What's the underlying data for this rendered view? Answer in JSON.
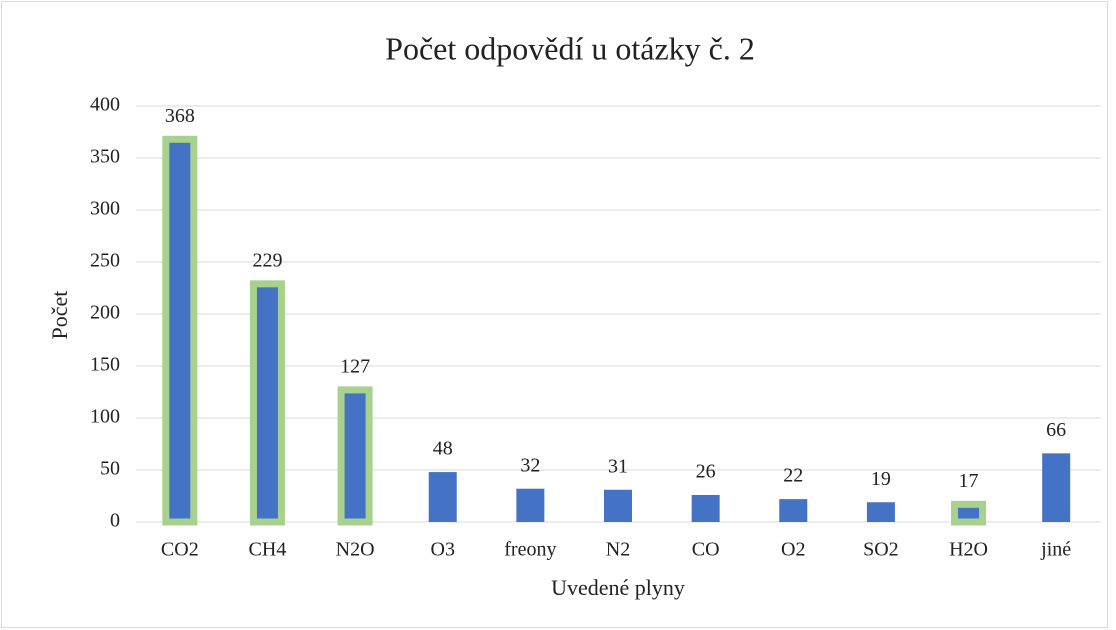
{
  "chart_data": {
    "type": "bar",
    "title": "Počet odpovědí u otázky č. 2",
    "x_label": "Uvedené plyny",
    "y_label": "Počet",
    "categories": [
      "CO2",
      "CH4",
      "N2O",
      "O3",
      "freony",
      "N2",
      "CO",
      "O2",
      "SO2",
      "H2O",
      "jiné"
    ],
    "values": [
      368,
      229,
      127,
      48,
      32,
      31,
      26,
      22,
      19,
      17,
      66
    ],
    "color": "#4472c4",
    "edgecolors": [
      "#a9d18e",
      "#a9d18e",
      "#a9d18e",
      null,
      null,
      null,
      null,
      null,
      null,
      "#a9d18e",
      null
    ],
    "ylim": [
      0,
      400
    ],
    "yticks": [
      0,
      50,
      100,
      150,
      200,
      250,
      300,
      350,
      400
    ],
    "grid": true
  }
}
